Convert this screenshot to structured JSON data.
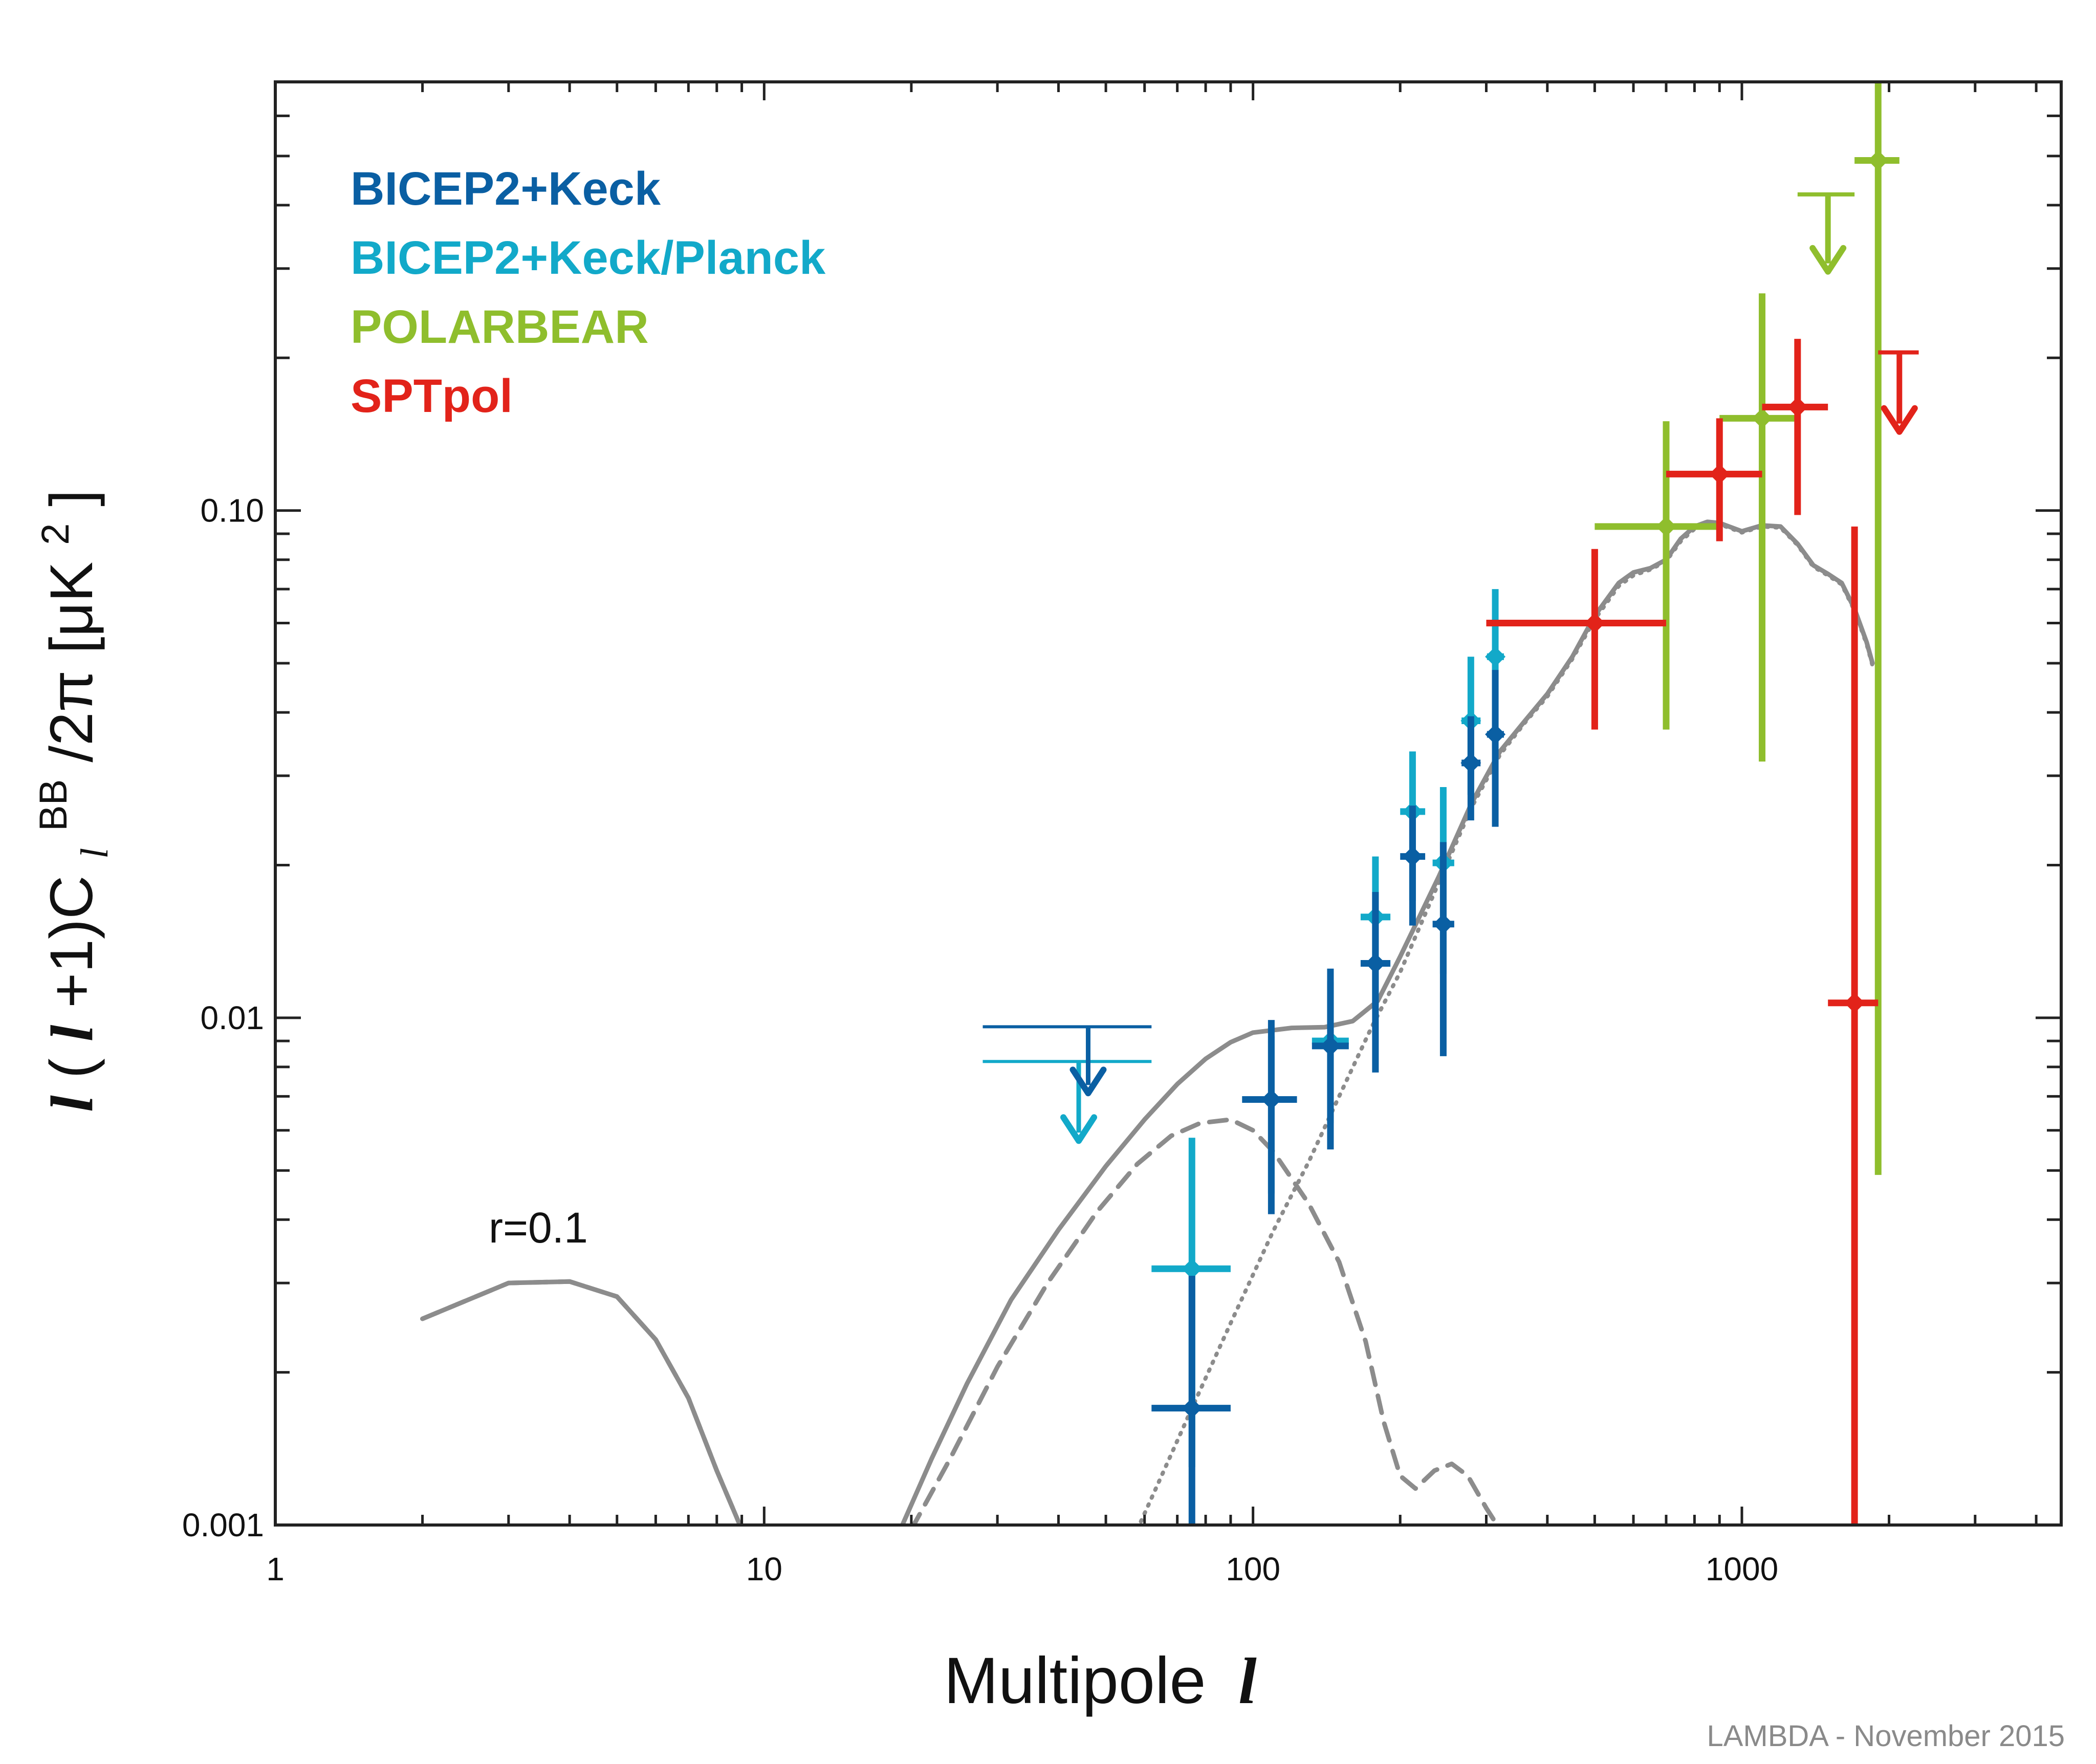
{
  "chart_data": {
    "type": "scatter",
    "title": "",
    "xlabel": "Multipole",
    "xlabel_symbol": "l",
    "ylabel": "l(l+1)C_l^BB/2π [μK²]",
    "ylabel_parts": {
      "l1": "l",
      "open": "(",
      "l2": "l",
      "plus": "+1)C",
      "sub": "l",
      "sup": "BB",
      "rest": "/2π [μK",
      "sq": "2",
      "close": "]"
    },
    "xscale": "log",
    "yscale": "log",
    "xlim": [
      1,
      4500
    ],
    "ylim": [
      0.001,
      0.7
    ],
    "xticks": [
      1,
      10,
      100,
      1000
    ],
    "xtick_labels": [
      "1",
      "10",
      "100",
      "1000"
    ],
    "yticks": [
      0.001,
      0.01,
      0.1
    ],
    "ytick_labels": [
      "0.001",
      "0.01",
      "0.10"
    ],
    "legend_position": "top-left",
    "colors": {
      "bicep2_keck": "#0a5fa3",
      "bicep2_keck_planck": "#12a9c9",
      "polarbear": "#8fbe2d",
      "sptpol": "#e2231a",
      "theory": "#8c8c8c"
    },
    "series": [
      {
        "name": "BICEP2+Keck",
        "color_key": "bicep2_keck",
        "points": [
          {
            "x": 75,
            "y": 0.0017,
            "xlo": 62,
            "xhi": 90,
            "ylo": 0.00095,
            "yhi": 0.0031
          },
          {
            "x": 109,
            "y": 0.0069,
            "xlo": 95,
            "xhi": 123,
            "ylo": 0.0041,
            "yhi": 0.0099
          },
          {
            "x": 144,
            "y": 0.0088,
            "xlo": 132,
            "xhi": 157,
            "ylo": 0.0055,
            "yhi": 0.0125
          },
          {
            "x": 178,
            "y": 0.0128,
            "xlo": 166,
            "xhi": 191,
            "ylo": 0.0078,
            "yhi": 0.0177
          },
          {
            "x": 212,
            "y": 0.0208,
            "xlo": 200,
            "xhi": 225,
            "ylo": 0.0152,
            "yhi": 0.0262
          },
          {
            "x": 245,
            "y": 0.0153,
            "xlo": 233,
            "xhi": 258,
            "ylo": 0.0084,
            "yhi": 0.0222
          },
          {
            "x": 279,
            "y": 0.0318,
            "xlo": 267,
            "xhi": 292,
            "ylo": 0.0245,
            "yhi": 0.0393
          },
          {
            "x": 313,
            "y": 0.0362,
            "xlo": 301,
            "xhi": 326,
            "ylo": 0.0238,
            "yhi": 0.0485
          }
        ],
        "upper_limit": {
          "x": 46,
          "xlo": 28,
          "xhi": 62,
          "y": 0.0096,
          "arrow_to": 0.0072
        }
      },
      {
        "name": "BICEP2+Keck/Planck",
        "color_key": "bicep2_keck_planck",
        "points": [
          {
            "x": 75,
            "y": 0.0032,
            "xlo": 62,
            "xhi": 90,
            "ylo": 0.0013,
            "yhi": 0.0058
          },
          {
            "x": 109,
            "y": 0.0069,
            "xlo": 95,
            "xhi": 123,
            "ylo": 0.0045,
            "yhi": 0.0092
          },
          {
            "x": 144,
            "y": 0.009,
            "xlo": 132,
            "xhi": 157,
            "ylo": 0.0062,
            "yhi": 0.0118
          },
          {
            "x": 178,
            "y": 0.0158,
            "xlo": 166,
            "xhi": 191,
            "ylo": 0.0106,
            "yhi": 0.0208
          },
          {
            "x": 212,
            "y": 0.0255,
            "xlo": 200,
            "xhi": 225,
            "ylo": 0.017,
            "yhi": 0.0335
          },
          {
            "x": 245,
            "y": 0.0202,
            "xlo": 233,
            "xhi": 258,
            "ylo": 0.0122,
            "yhi": 0.0285
          },
          {
            "x": 279,
            "y": 0.0385,
            "xlo": 267,
            "xhi": 292,
            "ylo": 0.0275,
            "yhi": 0.0515
          },
          {
            "x": 313,
            "y": 0.0515,
            "xlo": 301,
            "xhi": 326,
            "ylo": 0.034,
            "yhi": 0.07
          }
        ],
        "upper_limit": {
          "x": 44,
          "xlo": 28,
          "xhi": 62,
          "y": 0.0082,
          "arrow_to": 0.0058
        }
      },
      {
        "name": "POLARBEAR",
        "color_key": "polarbear",
        "points": [
          {
            "x": 700,
            "y": 0.093,
            "xlo": 500,
            "xhi": 900,
            "ylo": 0.037,
            "yhi": 0.15
          },
          {
            "x": 1100,
            "y": 0.152,
            "xlo": 900,
            "xhi": 1300,
            "ylo": 0.032,
            "yhi": 0.268
          },
          {
            "x": 1900,
            "y": 0.49,
            "xlo": 1700,
            "xhi": 2100,
            "ylo": 0.0049,
            "yhi": 0.7
          }
        ],
        "upper_limit": {
          "x": 1500,
          "xlo": 1300,
          "xhi": 1700,
          "y": 0.42,
          "arrow_to": 0.3
        }
      },
      {
        "name": "SPTpol",
        "color_key": "sptpol",
        "points": [
          {
            "x": 500,
            "y": 0.06,
            "xlo": 300,
            "xhi": 700,
            "ylo": 0.037,
            "yhi": 0.084
          },
          {
            "x": 900,
            "y": 0.118,
            "xlo": 700,
            "xhi": 1100,
            "ylo": 0.087,
            "yhi": 0.152
          },
          {
            "x": 1300,
            "y": 0.16,
            "xlo": 1100,
            "xhi": 1500,
            "ylo": 0.098,
            "yhi": 0.218
          },
          {
            "x": 1700,
            "y": 0.0107,
            "xlo": 1500,
            "xhi": 1900,
            "ylo": 0.0007,
            "yhi": 0.093
          }
        ],
        "upper_limit": {
          "x": 2100,
          "xlo": 1900,
          "xhi": 2300,
          "y": 0.205,
          "arrow_to": 0.145
        }
      }
    ],
    "theory_curves": [
      {
        "name": "total",
        "style": "solid",
        "segments": [
          [
            [
              2,
              0.00255
            ],
            [
              3,
              0.003
            ],
            [
              4,
              0.00302
            ],
            [
              5,
              0.00282
            ],
            [
              6,
              0.00232
            ],
            [
              7,
              0.00178
            ],
            [
              8,
              0.00128
            ],
            [
              9,
              0.00098
            ]
          ],
          [
            [
              19,
              0.00098
            ],
            [
              22,
              0.00135
            ],
            [
              26,
              0.0019
            ],
            [
              32,
              0.00278
            ],
            [
              40,
              0.00382
            ],
            [
              50,
              0.0051
            ],
            [
              60,
              0.0063
            ],
            [
              70,
              0.0074
            ],
            [
              80,
              0.0083
            ],
            [
              90,
              0.00895
            ],
            [
              100,
              0.00935
            ],
            [
              120,
              0.00955
            ],
            [
              140,
              0.00958
            ],
            [
              160,
              0.00985
            ],
            [
              180,
              0.0108
            ],
            [
              200,
              0.0132
            ],
            [
              240,
              0.019
            ],
            [
              280,
              0.0265
            ],
            [
              320,
              0.0335
            ],
            [
              360,
              0.0385
            ],
            [
              400,
              0.0435
            ],
            [
              450,
              0.0515
            ],
            [
              500,
              0.062
            ],
            [
              560,
              0.072
            ],
            [
              600,
              0.0755
            ],
            [
              650,
              0.077
            ],
            [
              700,
              0.08
            ],
            [
              750,
              0.088
            ],
            [
              800,
              0.093
            ],
            [
              850,
              0.095
            ],
            [
              900,
              0.0945
            ],
            [
              1000,
              0.091
            ],
            [
              1100,
              0.0935
            ],
            [
              1200,
              0.093
            ],
            [
              1300,
              0.086
            ],
            [
              1400,
              0.078
            ],
            [
              1500,
              0.075
            ],
            [
              1600,
              0.072
            ],
            [
              1700,
              0.064
            ],
            [
              1800,
              0.055
            ],
            [
              1850,
              0.05
            ]
          ]
        ]
      },
      {
        "name": "tensor_r0.1",
        "style": "dashed",
        "segments": [
          [
            [
              2,
              0.00255
            ],
            [
              3,
              0.003
            ],
            [
              4,
              0.00302
            ],
            [
              5,
              0.00282
            ],
            [
              6,
              0.00232
            ],
            [
              7,
              0.00178
            ],
            [
              8,
              0.00128
            ],
            [
              9,
              0.00098
            ]
          ],
          [
            [
              20,
              0.00098
            ],
            [
              24,
              0.00135
            ],
            [
              30,
              0.00205
            ],
            [
              38,
              0.003
            ],
            [
              48,
              0.00415
            ],
            [
              58,
              0.00515
            ],
            [
              68,
              0.00585
            ],
            [
              78,
              0.0062
            ],
            [
              90,
              0.0063
            ],
            [
              100,
              0.006
            ],
            [
              110,
              0.00545
            ],
            [
              130,
              0.0043
            ],
            [
              150,
              0.0033
            ],
            [
              170,
              0.0023
            ],
            [
              185,
              0.0016
            ],
            [
              200,
              0.00125
            ],
            [
              215,
              0.00118
            ],
            [
              235,
              0.00128
            ],
            [
              255,
              0.00132
            ],
            [
              275,
              0.00125
            ],
            [
              300,
              0.00108
            ],
            [
              320,
              0.00098
            ]
          ]
        ]
      },
      {
        "name": "lensing",
        "style": "dotted",
        "segments": [
          [
            [
              58,
              0.00098
            ],
            [
              65,
              0.00125
            ],
            [
              75,
              0.0017
            ],
            [
              90,
              0.0025
            ],
            [
              110,
              0.0038
            ],
            [
              130,
              0.0052
            ],
            [
              150,
              0.007
            ],
            [
              175,
              0.0096
            ],
            [
              200,
              0.0123
            ],
            [
              240,
              0.0185
            ],
            [
              280,
              0.026
            ],
            [
              320,
              0.033
            ],
            [
              360,
              0.0382
            ],
            [
              400,
              0.043
            ],
            [
              450,
              0.051
            ],
            [
              500,
              0.061
            ],
            [
              560,
              0.071
            ],
            [
              600,
              0.0745
            ],
            [
              650,
              0.0765
            ],
            [
              700,
              0.0795
            ],
            [
              750,
              0.087
            ],
            [
              800,
              0.092
            ],
            [
              850,
              0.0945
            ],
            [
              900,
              0.094
            ],
            [
              1000,
              0.0905
            ],
            [
              1100,
              0.093
            ],
            [
              1200,
              0.0925
            ],
            [
              1300,
              0.0855
            ],
            [
              1400,
              0.0775
            ],
            [
              1500,
              0.0745
            ],
            [
              1600,
              0.0715
            ],
            [
              1700,
              0.0635
            ],
            [
              1800,
              0.0545
            ],
            [
              1850,
              0.0495
            ]
          ]
        ]
      }
    ],
    "annotations": [
      {
        "text": "r=0.1",
        "x": 4,
        "y": 0.0037
      }
    ],
    "credit": "LAMBDA - November 2015"
  }
}
